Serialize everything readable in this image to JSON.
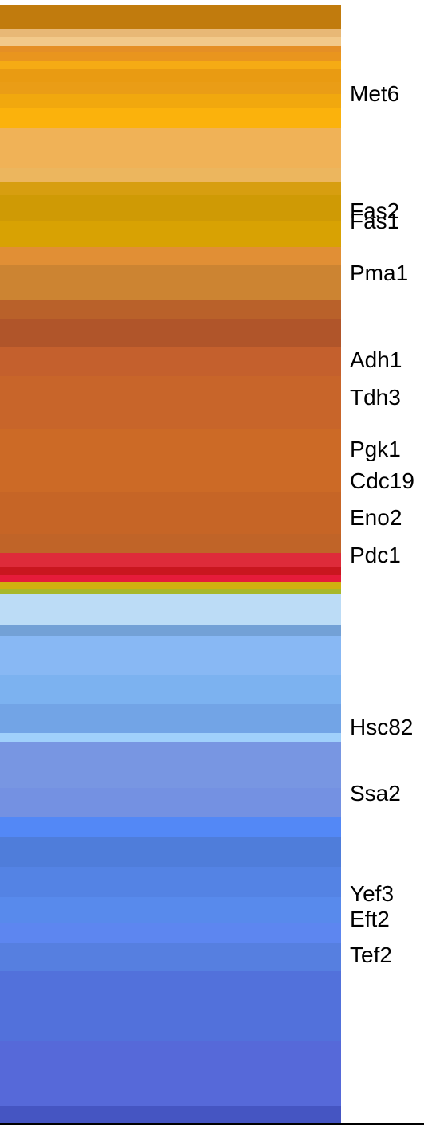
{
  "chart_data": {
    "type": "heatmap",
    "title": "",
    "xlabel": "",
    "ylabel": "",
    "labeled_genes": [
      "Met6",
      "Fas2",
      "Fas1",
      "Pma1",
      "Adh1",
      "Tdh3",
      "Pgk1",
      "Cdc19",
      "Eno2",
      "Pdc1",
      "Hsc82",
      "Ssa2",
      "Yef3",
      "Eft2",
      "Tef2"
    ],
    "label_rows": [
      6.2,
      14.4,
      15.1,
      18.7,
      24.8,
      27.4,
      31.0,
      33.2,
      35.8,
      38.4,
      50.4,
      55.0,
      62.0,
      63.8,
      66.3
    ],
    "rows_total": 78,
    "stripes": [
      {
        "from": 0,
        "to": 1.7,
        "color": "#c17b0d"
      },
      {
        "from": 1.7,
        "to": 2.3,
        "color": "#e8b876"
      },
      {
        "from": 2.3,
        "to": 2.9,
        "color": "#f2c98a"
      },
      {
        "from": 2.9,
        "to": 3.3,
        "color": "#e58f25"
      },
      {
        "from": 3.3,
        "to": 3.9,
        "color": "#e9951e"
      },
      {
        "from": 3.9,
        "to": 4.5,
        "color": "#f5ab14"
      },
      {
        "from": 4.5,
        "to": 5.4,
        "color": "#e99b12"
      },
      {
        "from": 5.4,
        "to": 6.2,
        "color": "#ea9d16"
      },
      {
        "from": 6.2,
        "to": 7.2,
        "color": "#f1a80e"
      },
      {
        "from": 7.2,
        "to": 8.6,
        "color": "#fbb20c"
      },
      {
        "from": 8.6,
        "to": 11.4,
        "color": "#f0b257"
      },
      {
        "from": 11.4,
        "to": 12.4,
        "color": "#ecb65e"
      },
      {
        "from": 12.4,
        "to": 13.3,
        "color": "#d79e10"
      },
      {
        "from": 13.3,
        "to": 15.1,
        "color": "#cf9a05"
      },
      {
        "from": 15.1,
        "to": 16.9,
        "color": "#d8a203"
      },
      {
        "from": 16.9,
        "to": 18.1,
        "color": "#e18f35"
      },
      {
        "from": 18.1,
        "to": 20.6,
        "color": "#cc8432"
      },
      {
        "from": 20.6,
        "to": 21.9,
        "color": "#b9612a"
      },
      {
        "from": 21.9,
        "to": 23.9,
        "color": "#b0552a"
      },
      {
        "from": 23.9,
        "to": 25.9,
        "color": "#c4602d"
      },
      {
        "from": 25.9,
        "to": 29.6,
        "color": "#c8652a"
      },
      {
        "from": 29.6,
        "to": 34.0,
        "color": "#cc6a26"
      },
      {
        "from": 34.0,
        "to": 36.9,
        "color": "#c66526"
      },
      {
        "from": 36.9,
        "to": 38.2,
        "color": "#c06428"
      },
      {
        "from": 38.2,
        "to": 39.2,
        "color": "#de2b3a"
      },
      {
        "from": 39.2,
        "to": 39.8,
        "color": "#c9161f"
      },
      {
        "from": 39.8,
        "to": 40.3,
        "color": "#e51b3a"
      },
      {
        "from": 40.3,
        "to": 40.7,
        "color": "#d0b010"
      },
      {
        "from": 40.7,
        "to": 41.1,
        "color": "#a8b82a"
      },
      {
        "from": 41.1,
        "to": 43.2,
        "color": "#bcdcf6"
      },
      {
        "from": 43.2,
        "to": 44.0,
        "color": "#73a1d6"
      },
      {
        "from": 44.0,
        "to": 46.7,
        "color": "#88b8f4"
      },
      {
        "from": 46.7,
        "to": 48.8,
        "color": "#7cb2f0"
      },
      {
        "from": 48.8,
        "to": 50.8,
        "color": "#72a4e6"
      },
      {
        "from": 50.8,
        "to": 51.4,
        "color": "#a0d0fb"
      },
      {
        "from": 51.4,
        "to": 54.6,
        "color": "#7896e2"
      },
      {
        "from": 54.6,
        "to": 56.6,
        "color": "#7491e2"
      },
      {
        "from": 56.6,
        "to": 58.0,
        "color": "#5388f6"
      },
      {
        "from": 58.0,
        "to": 60.1,
        "color": "#4f7dda"
      },
      {
        "from": 60.1,
        "to": 62.2,
        "color": "#5483e4"
      },
      {
        "from": 62.2,
        "to": 64.0,
        "color": "#588aec"
      },
      {
        "from": 64.0,
        "to": 65.4,
        "color": "#5d86f0"
      },
      {
        "from": 65.4,
        "to": 67.4,
        "color": "#567fe0"
      },
      {
        "from": 67.4,
        "to": 72.3,
        "color": "#5271db"
      },
      {
        "from": 72.3,
        "to": 76.8,
        "color": "#5669d9"
      },
      {
        "from": 76.8,
        "to": 78.0,
        "color": "#4555c2"
      }
    ]
  }
}
